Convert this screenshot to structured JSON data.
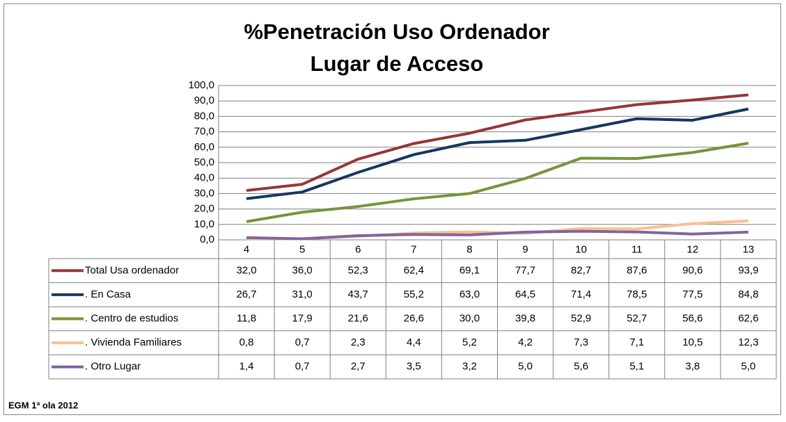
{
  "chart_data": {
    "type": "line",
    "title": [
      "%Penetración Uso Ordenador",
      "Lugar de Acceso"
    ],
    "source": "EGM 1ª ola 2012",
    "categories": [
      "4",
      "5",
      "6",
      "7",
      "8",
      "9",
      "10",
      "11",
      "12",
      "13"
    ],
    "ylim": [
      0,
      100
    ],
    "yticks": [
      {
        "value": 0,
        "label": "0,0"
      },
      {
        "value": 10,
        "label": "10,0"
      },
      {
        "value": 20,
        "label": "20,0"
      },
      {
        "value": 30,
        "label": "30,0"
      },
      {
        "value": 40,
        "label": "40,0"
      },
      {
        "value": 50,
        "label": "50,0"
      },
      {
        "value": 60,
        "label": "60,0"
      },
      {
        "value": 70,
        "label": "70,0"
      },
      {
        "value": 80,
        "label": "80,0"
      },
      {
        "value": 90,
        "label": "90,0"
      },
      {
        "value": 100,
        "label": "100,0"
      }
    ],
    "grid": true,
    "series": [
      {
        "name": "Total Usa ordenador",
        "color": "#953735",
        "values": [
          32.0,
          36.0,
          52.3,
          62.4,
          69.1,
          77.7,
          82.7,
          87.6,
          90.6,
          93.9
        ],
        "value_labels": [
          "32,0",
          "36,0",
          "52,3",
          "62,4",
          "69,1",
          "77,7",
          "82,7",
          "87,6",
          "90,6",
          "93,9"
        ]
      },
      {
        "name": ". En Casa",
        "color": "#17375e",
        "values": [
          26.7,
          31.0,
          43.7,
          55.2,
          63.0,
          64.5,
          71.4,
          78.5,
          77.5,
          84.8
        ],
        "value_labels": [
          "26,7",
          "31,0",
          "43,7",
          "55,2",
          "63,0",
          "64,5",
          "71,4",
          "78,5",
          "77,5",
          "84,8"
        ]
      },
      {
        "name": ". Centro de estudios",
        "color": "#77933c",
        "values": [
          11.8,
          17.9,
          21.6,
          26.6,
          30.0,
          39.8,
          52.9,
          52.7,
          56.6,
          62.6
        ],
        "value_labels": [
          "11,8",
          "17,9",
          "21,6",
          "26,6",
          "30,0",
          "39,8",
          "52,9",
          "52,7",
          "56,6",
          "62,6"
        ]
      },
      {
        "name": ". Vivienda Familiares",
        "color": "#fac090",
        "values": [
          0.8,
          0.7,
          2.3,
          4.4,
          5.2,
          4.2,
          7.3,
          7.1,
          10.5,
          12.3
        ],
        "value_labels": [
          "0,8",
          "0,7",
          "2,3",
          "4,4",
          "5,2",
          "4,2",
          "7,3",
          "7,1",
          "10,5",
          "12,3"
        ]
      },
      {
        "name": ". Otro Lugar",
        "color": "#8064a2",
        "values": [
          1.4,
          0.7,
          2.7,
          3.5,
          3.2,
          5.0,
          5.6,
          5.1,
          3.8,
          5.0
        ],
        "value_labels": [
          "1,4",
          "0,7",
          "2,7",
          "3,5",
          "3,2",
          "5,0",
          "5,6",
          "5,1",
          "3,8",
          "5,0"
        ]
      }
    ]
  }
}
